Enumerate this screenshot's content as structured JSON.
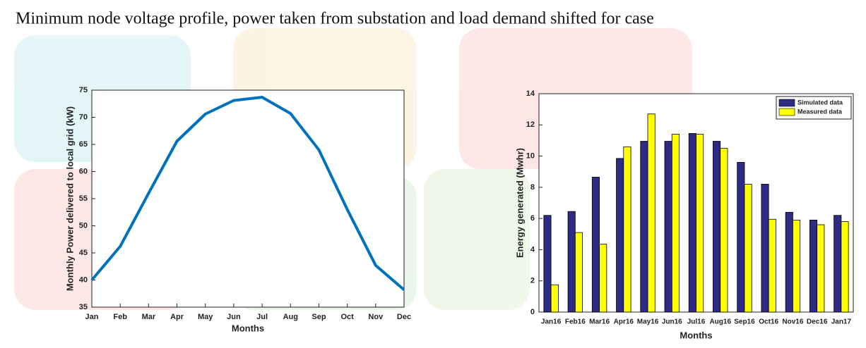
{
  "caption": "Minimum node voltage profile, power taken from substation and load demand shifted for case",
  "chart_data": [
    {
      "type": "line",
      "x_label": "Months",
      "y_label": "Monthly Power delivered to local grid (kW)",
      "categories": [
        "Jan",
        "Feb",
        "Mar",
        "Apr",
        "May",
        "Jun",
        "Jul",
        "Aug",
        "Sep",
        "Oct",
        "Nov",
        "Dec"
      ],
      "values": [
        40,
        46.2,
        56,
        65.6,
        70.6,
        73.1,
        73.7,
        70.7,
        64,
        53,
        42.7,
        38.2
      ],
      "color": "#0072bd",
      "ylim": [
        35,
        75
      ],
      "yticks": [
        35,
        40,
        45,
        50,
        55,
        60,
        65,
        70,
        75
      ]
    },
    {
      "type": "bar",
      "x_label": "Months",
      "y_label": "Energy generated (Mwhr)",
      "categories": [
        "Jan16",
        "Feb16",
        "Mar16",
        "Apr16",
        "May16",
        "Jun16",
        "Jul16",
        "Aug16",
        "Sep16",
        "Oct16",
        "Nov16",
        "Dec16",
        "Jan17"
      ],
      "series": [
        {
          "name": "Simulated data",
          "color": "#2e2a85",
          "values": [
            6.2,
            6.45,
            8.65,
            9.85,
            10.95,
            10.95,
            11.45,
            10.95,
            9.6,
            8.2,
            6.4,
            5.9,
            6.2
          ]
        },
        {
          "name": "Measured data",
          "color": "#ffff00",
          "values": [
            1.75,
            5.1,
            4.35,
            10.6,
            12.7,
            11.4,
            11.4,
            10.5,
            8.2,
            5.95,
            5.9,
            5.6,
            5.8
          ]
        }
      ],
      "ylim": [
        0,
        14
      ],
      "yticks": [
        0,
        2,
        4,
        6,
        8,
        10,
        12,
        14
      ],
      "legend": "northeast"
    }
  ]
}
